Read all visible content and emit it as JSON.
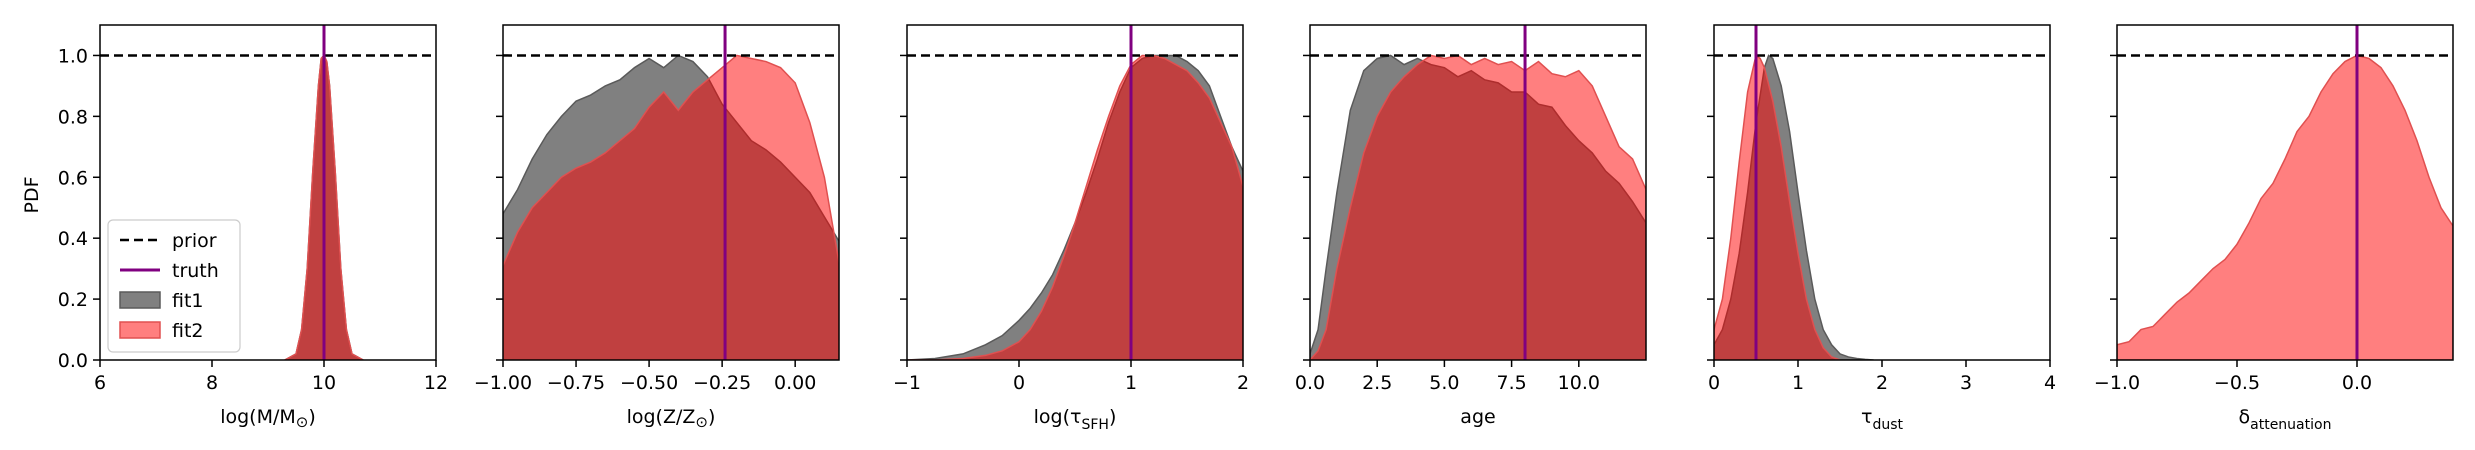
{
  "chart_data": {
    "type": "area",
    "y_axis_label": "PDF",
    "shared_yticks": [
      "0.0",
      "0.2",
      "0.4",
      "0.6",
      "0.8",
      "1.0"
    ],
    "legend": {
      "placement": "lower-left of first panel",
      "entries": [
        {
          "label": "prior",
          "style": "dashed-line",
          "color": "#000000"
        },
        {
          "label": "truth",
          "style": "line",
          "color": "#800080"
        },
        {
          "label": "fit1",
          "style": "patch",
          "color": "#808080"
        },
        {
          "label": "fit2",
          "style": "patch",
          "color": "#ff7f7f"
        }
      ]
    },
    "colors": {
      "fit1": "#808080",
      "fit2": "#ff0000",
      "overlap": "#c03c3c",
      "truth": "#800080",
      "prior": "#000000"
    },
    "prior_value": 1.0,
    "panels": [
      {
        "xlabel": "log(M/M",
        "xlabel_sub": "⊙",
        "xlabel_suffix": ")",
        "xlabel_style": "sub-symbol",
        "xlim": [
          6,
          12
        ],
        "xticks": [
          6,
          8,
          10,
          12
        ],
        "xtick_labels": [
          "6",
          "8",
          "10",
          "12"
        ],
        "truth": 10.0,
        "fit1": {
          "x": [
            9.3,
            9.5,
            9.6,
            9.7,
            9.8,
            9.9,
            9.95,
            10.0,
            10.05,
            10.1,
            10.2,
            10.3,
            10.4,
            10.5,
            10.7
          ],
          "y": [
            0.0,
            0.02,
            0.1,
            0.3,
            0.62,
            0.9,
            0.99,
            1.0,
            0.98,
            0.9,
            0.62,
            0.3,
            0.1,
            0.02,
            0.0
          ]
        },
        "fit2": {
          "x": [
            9.3,
            9.5,
            9.6,
            9.7,
            9.8,
            9.9,
            9.95,
            10.0,
            10.05,
            10.1,
            10.2,
            10.3,
            10.4,
            10.5,
            10.7
          ],
          "y": [
            0.0,
            0.02,
            0.1,
            0.3,
            0.62,
            0.9,
            0.99,
            1.0,
            0.98,
            0.9,
            0.62,
            0.3,
            0.1,
            0.02,
            0.0
          ]
        }
      },
      {
        "xlabel": "log(Z/Z",
        "xlabel_sub": "⊙",
        "xlabel_suffix": ")",
        "xlabel_style": "sub-symbol",
        "xlim": [
          -1.0,
          0.15
        ],
        "xticks": [
          -1.0,
          -0.75,
          -0.5,
          -0.25,
          0.0
        ],
        "xtick_labels": [
          "−1.00",
          "−0.75",
          "−0.50",
          "−0.25",
          "0.00"
        ],
        "truth": -0.24,
        "fit1": {
          "x": [
            -1.0,
            -0.95,
            -0.9,
            -0.85,
            -0.8,
            -0.75,
            -0.7,
            -0.65,
            -0.6,
            -0.55,
            -0.5,
            -0.45,
            -0.4,
            -0.35,
            -0.3,
            -0.25,
            -0.2,
            -0.15,
            -0.1,
            -0.05,
            0.0,
            0.05,
            0.1,
            0.15
          ],
          "y": [
            0.48,
            0.56,
            0.66,
            0.74,
            0.8,
            0.85,
            0.87,
            0.9,
            0.92,
            0.96,
            0.99,
            0.96,
            1.0,
            0.98,
            0.93,
            0.84,
            0.78,
            0.72,
            0.69,
            0.65,
            0.6,
            0.55,
            0.47,
            0.39
          ]
        },
        "fit2": {
          "x": [
            -1.0,
            -0.95,
            -0.9,
            -0.85,
            -0.8,
            -0.75,
            -0.7,
            -0.65,
            -0.6,
            -0.55,
            -0.5,
            -0.45,
            -0.4,
            -0.35,
            -0.3,
            -0.25,
            -0.2,
            -0.15,
            -0.1,
            -0.05,
            0.0,
            0.05,
            0.1,
            0.15
          ],
          "y": [
            0.31,
            0.42,
            0.5,
            0.55,
            0.6,
            0.63,
            0.65,
            0.68,
            0.72,
            0.76,
            0.83,
            0.88,
            0.82,
            0.88,
            0.92,
            0.96,
            1.0,
            0.99,
            0.98,
            0.96,
            0.91,
            0.78,
            0.6,
            0.32
          ]
        }
      },
      {
        "xlabel": "log(τ",
        "xlabel_sub": "SFH",
        "xlabel_suffix": ")",
        "xlabel_style": "subscript",
        "xlim": [
          -1,
          2
        ],
        "xticks": [
          -1,
          0,
          1,
          2
        ],
        "xtick_labels": [
          "−1",
          "0",
          "1",
          "2"
        ],
        "truth": 1.0,
        "fit1": {
          "x": [
            -1.0,
            -0.75,
            -0.5,
            -0.3,
            -0.15,
            0.0,
            0.1,
            0.2,
            0.3,
            0.4,
            0.5,
            0.6,
            0.7,
            0.8,
            0.9,
            1.0,
            1.1,
            1.2,
            1.3,
            1.4,
            1.5,
            1.6,
            1.7,
            1.8,
            1.9,
            2.0
          ],
          "y": [
            0.0,
            0.005,
            0.02,
            0.05,
            0.08,
            0.13,
            0.17,
            0.22,
            0.28,
            0.36,
            0.45,
            0.55,
            0.66,
            0.78,
            0.88,
            0.96,
            0.99,
            1.0,
            1.0,
            1.0,
            0.98,
            0.95,
            0.9,
            0.8,
            0.7,
            0.62
          ]
        },
        "fit2": {
          "x": [
            -1.0,
            -0.75,
            -0.5,
            -0.3,
            -0.15,
            0.0,
            0.1,
            0.2,
            0.3,
            0.4,
            0.5,
            0.6,
            0.7,
            0.8,
            0.9,
            1.0,
            1.1,
            1.2,
            1.3,
            1.4,
            1.5,
            1.6,
            1.7,
            1.8,
            1.9,
            2.0
          ],
          "y": [
            0.0,
            0.0,
            0.005,
            0.015,
            0.03,
            0.06,
            0.1,
            0.16,
            0.24,
            0.34,
            0.45,
            0.57,
            0.69,
            0.8,
            0.9,
            0.97,
            1.0,
            1.0,
            0.99,
            0.97,
            0.95,
            0.91,
            0.86,
            0.78,
            0.7,
            0.57
          ]
        }
      },
      {
        "xlabel": "age",
        "xlabel_style": "plain",
        "xlim": [
          0.0,
          12.5
        ],
        "xticks": [
          0.0,
          2.5,
          5.0,
          7.5,
          10.0
        ],
        "xtick_labels": [
          "0.0",
          "2.5",
          "5.0",
          "7.5",
          "10.0"
        ],
        "truth": 8.0,
        "fit1": {
          "x": [
            0.0,
            0.3,
            0.6,
            1.0,
            1.5,
            2.0,
            2.5,
            3.0,
            3.5,
            4.0,
            4.5,
            5.0,
            5.5,
            6.0,
            6.5,
            7.0,
            7.5,
            8.0,
            8.5,
            9.0,
            9.5,
            10.0,
            10.5,
            11.0,
            11.5,
            12.0,
            12.5
          ],
          "y": [
            0.02,
            0.1,
            0.3,
            0.55,
            0.82,
            0.95,
            0.99,
            1.0,
            0.97,
            0.99,
            0.97,
            0.96,
            0.93,
            0.95,
            0.92,
            0.91,
            0.88,
            0.88,
            0.84,
            0.83,
            0.77,
            0.72,
            0.68,
            0.62,
            0.58,
            0.52,
            0.45
          ]
        },
        "fit2": {
          "x": [
            0.0,
            0.3,
            0.6,
            1.0,
            1.5,
            2.0,
            2.5,
            3.0,
            3.5,
            4.0,
            4.5,
            5.0,
            5.5,
            6.0,
            6.5,
            7.0,
            7.5,
            8.0,
            8.5,
            9.0,
            9.5,
            10.0,
            10.5,
            11.0,
            11.5,
            12.0,
            12.5
          ],
          "y": [
            0.0,
            0.03,
            0.1,
            0.3,
            0.5,
            0.68,
            0.8,
            0.88,
            0.93,
            0.97,
            1.0,
            0.99,
            1.0,
            0.97,
            0.99,
            0.97,
            0.98,
            0.95,
            0.98,
            0.94,
            0.93,
            0.95,
            0.9,
            0.8,
            0.7,
            0.66,
            0.56
          ]
        }
      },
      {
        "xlabel": "τ",
        "xlabel_sub": "dust",
        "xlabel_style": "subscript",
        "xlim": [
          0,
          4
        ],
        "xticks": [
          0,
          1,
          2,
          3,
          4
        ],
        "xtick_labels": [
          "0",
          "1",
          "2",
          "3",
          "4"
        ],
        "truth": 0.5,
        "fit1": {
          "x": [
            0.0,
            0.1,
            0.2,
            0.3,
            0.4,
            0.5,
            0.6,
            0.65,
            0.7,
            0.8,
            0.9,
            1.0,
            1.1,
            1.2,
            1.3,
            1.4,
            1.5,
            1.6,
            1.7,
            1.8,
            1.9
          ],
          "y": [
            0.05,
            0.1,
            0.2,
            0.35,
            0.55,
            0.78,
            0.96,
            1.0,
            0.99,
            0.9,
            0.75,
            0.55,
            0.36,
            0.2,
            0.1,
            0.05,
            0.02,
            0.01,
            0.005,
            0.002,
            0.0
          ]
        },
        "fit2": {
          "x": [
            0.0,
            0.1,
            0.2,
            0.3,
            0.4,
            0.5,
            0.55,
            0.6,
            0.7,
            0.8,
            0.9,
            1.0,
            1.1,
            1.2,
            1.3,
            1.4,
            1.5
          ],
          "y": [
            0.1,
            0.2,
            0.4,
            0.65,
            0.88,
            1.0,
            0.99,
            0.96,
            0.85,
            0.7,
            0.52,
            0.35,
            0.2,
            0.1,
            0.04,
            0.01,
            0.0
          ]
        }
      },
      {
        "xlabel": "δ",
        "xlabel_sub": "attenuation",
        "xlabel_style": "subscript",
        "xlim": [
          -1.0,
          0.4
        ],
        "xticks": [
          -1.0,
          -0.5,
          0.0
        ],
        "xtick_labels": [
          "−1.0",
          "−0.5",
          "0.0"
        ],
        "truth": 0.0,
        "fit2": {
          "x": [
            -1.0,
            -0.95,
            -0.9,
            -0.85,
            -0.8,
            -0.75,
            -0.7,
            -0.65,
            -0.6,
            -0.55,
            -0.5,
            -0.45,
            -0.4,
            -0.35,
            -0.3,
            -0.25,
            -0.2,
            -0.15,
            -0.1,
            -0.05,
            0.0,
            0.05,
            0.1,
            0.15,
            0.2,
            0.25,
            0.3,
            0.35,
            0.4
          ],
          "y": [
            0.05,
            0.06,
            0.1,
            0.11,
            0.15,
            0.19,
            0.22,
            0.26,
            0.3,
            0.33,
            0.38,
            0.45,
            0.53,
            0.58,
            0.66,
            0.75,
            0.8,
            0.88,
            0.94,
            0.98,
            1.0,
            0.99,
            0.96,
            0.9,
            0.82,
            0.72,
            0.6,
            0.5,
            0.44
          ]
        }
      }
    ]
  }
}
